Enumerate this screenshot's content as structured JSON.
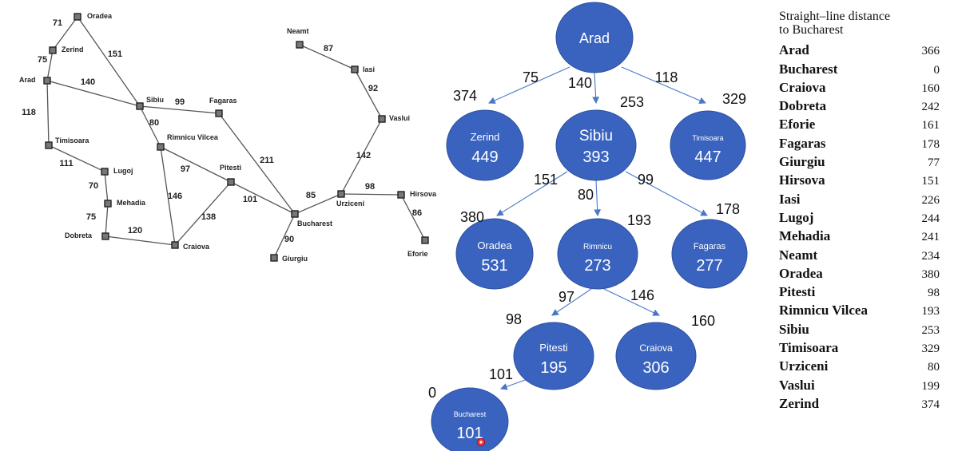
{
  "map": {
    "cities": [
      {
        "id": "oradea",
        "name": "Oradea"
      },
      {
        "id": "zerind",
        "name": "Zerind"
      },
      {
        "id": "arad",
        "name": "Arad"
      },
      {
        "id": "timisoara",
        "name": "Timisoara"
      },
      {
        "id": "lugoj",
        "name": "Lugoj"
      },
      {
        "id": "mehadia",
        "name": "Mehadia"
      },
      {
        "id": "dobreta",
        "name": "Dobreta"
      },
      {
        "id": "craiova",
        "name": "Craiova"
      },
      {
        "id": "sibiu",
        "name": "Sibiu"
      },
      {
        "id": "fagaras",
        "name": "Fagaras"
      },
      {
        "id": "rimnicu",
        "name": "Rimnicu Vilcea"
      },
      {
        "id": "pitesti",
        "name": "Pitesti"
      },
      {
        "id": "bucharest",
        "name": "Bucharest"
      },
      {
        "id": "giurgiu",
        "name": "Giurgiu"
      },
      {
        "id": "urziceni",
        "name": "Urziceni"
      },
      {
        "id": "hirsova",
        "name": "Hirsova"
      },
      {
        "id": "eforie",
        "name": "Eforie"
      },
      {
        "id": "vaslui",
        "name": "Vaslui"
      },
      {
        "id": "iasi",
        "name": "Iasi"
      },
      {
        "id": "neamt",
        "name": "Neamt"
      }
    ],
    "roads": [
      {
        "a": "oradea",
        "b": "zerind",
        "d": "71"
      },
      {
        "a": "zerind",
        "b": "arad",
        "d": "75"
      },
      {
        "a": "oradea",
        "b": "sibiu",
        "d": "151"
      },
      {
        "a": "arad",
        "b": "sibiu",
        "d": "140"
      },
      {
        "a": "arad",
        "b": "timisoara",
        "d": "118"
      },
      {
        "a": "timisoara",
        "b": "lugoj",
        "d": "111"
      },
      {
        "a": "lugoj",
        "b": "mehadia",
        "d": "70"
      },
      {
        "a": "mehadia",
        "b": "dobreta",
        "d": "75"
      },
      {
        "a": "dobreta",
        "b": "craiova",
        "d": "120"
      },
      {
        "a": "sibiu",
        "b": "fagaras",
        "d": "99"
      },
      {
        "a": "sibiu",
        "b": "rimnicu",
        "d": "80"
      },
      {
        "a": "rimnicu",
        "b": "pitesti",
        "d": "97"
      },
      {
        "a": "rimnicu",
        "b": "craiova",
        "d": "146"
      },
      {
        "a": "craiova",
        "b": "pitesti",
        "d": "138"
      },
      {
        "a": "pitesti",
        "b": "bucharest",
        "d": "101"
      },
      {
        "a": "fagaras",
        "b": "bucharest",
        "d": "211"
      },
      {
        "a": "bucharest",
        "b": "giurgiu",
        "d": "90"
      },
      {
        "a": "bucharest",
        "b": "urziceni",
        "d": "85"
      },
      {
        "a": "urziceni",
        "b": "hirsova",
        "d": "98"
      },
      {
        "a": "hirsova",
        "b": "eforie",
        "d": "86"
      },
      {
        "a": "urziceni",
        "b": "vaslui",
        "d": "142"
      },
      {
        "a": "vaslui",
        "b": "iasi",
        "d": "92"
      },
      {
        "a": "iasi",
        "b": "neamt",
        "d": "87"
      }
    ]
  },
  "tree": {
    "nodes": [
      {
        "id": "t-arad",
        "name": "Arad",
        "value": ""
      },
      {
        "id": "t-zerind",
        "name": "Zerind",
        "value": "449"
      },
      {
        "id": "t-sibiu",
        "name": "Sibiu",
        "value": "393"
      },
      {
        "id": "t-timisoara",
        "name": "Timisoara",
        "value": "447"
      },
      {
        "id": "t-oradea",
        "name": "Oradea",
        "value": "531"
      },
      {
        "id": "t-rimnicu",
        "name": "Rimnicu",
        "value": "273"
      },
      {
        "id": "t-fagaras",
        "name": "Fagaras",
        "value": "277"
      },
      {
        "id": "t-pitesti",
        "name": "Pitesti",
        "value": "195"
      },
      {
        "id": "t-craiova",
        "name": "Craiova",
        "value": "306"
      },
      {
        "id": "t-bucharest",
        "name": "Bucharest",
        "value": "101"
      }
    ],
    "edges": [
      {
        "from": "t-arad",
        "to": "t-zerind",
        "cost": "75"
      },
      {
        "from": "t-arad",
        "to": "t-sibiu",
        "cost": "140"
      },
      {
        "from": "t-arad",
        "to": "t-timisoara",
        "cost": "118"
      },
      {
        "from": "t-sibiu",
        "to": "t-oradea",
        "cost": "151"
      },
      {
        "from": "t-sibiu",
        "to": "t-rimnicu",
        "cost": "80"
      },
      {
        "from": "t-sibiu",
        "to": "t-fagaras",
        "cost": "99"
      },
      {
        "from": "t-rimnicu",
        "to": "t-pitesti",
        "cost": "97"
      },
      {
        "from": "t-rimnicu",
        "to": "t-craiova",
        "cost": "146"
      },
      {
        "from": "t-pitesti",
        "to": "t-bucharest",
        "cost": "101"
      }
    ],
    "heuristics": [
      {
        "node": "t-zerind",
        "h": "374"
      },
      {
        "node": "t-sibiu",
        "h": "253"
      },
      {
        "node": "t-timisoara",
        "h": "329"
      },
      {
        "node": "t-oradea",
        "h": "380"
      },
      {
        "node": "t-rimnicu",
        "h": "193"
      },
      {
        "node": "t-fagaras",
        "h": "178"
      },
      {
        "node": "t-pitesti",
        "h": "98"
      },
      {
        "node": "t-craiova",
        "h": "160"
      },
      {
        "node": "t-bucharest",
        "h": "0"
      }
    ]
  },
  "sld": {
    "title_line1": "Straight–line distance",
    "title_line2": "to Bucharest",
    "rows": [
      {
        "city": "Arad",
        "value": "366"
      },
      {
        "city": "Bucharest",
        "value": "0"
      },
      {
        "city": "Craiova",
        "value": "160"
      },
      {
        "city": "Dobreta",
        "value": "242"
      },
      {
        "city": "Eforie",
        "value": "161"
      },
      {
        "city": "Fagaras",
        "value": "178"
      },
      {
        "city": "Giurgiu",
        "value": "77"
      },
      {
        "city": "Hirsova",
        "value": "151"
      },
      {
        "city": "Iasi",
        "value": "226"
      },
      {
        "city": "Lugoj",
        "value": "244"
      },
      {
        "city": "Mehadia",
        "value": "241"
      },
      {
        "city": "Neamt",
        "value": "234"
      },
      {
        "city": "Oradea",
        "value": "380"
      },
      {
        "city": "Pitesti",
        "value": "98"
      },
      {
        "city": "Rimnicu Vilcea",
        "value": "193"
      },
      {
        "city": "Sibiu",
        "value": "253"
      },
      {
        "city": "Timisoara",
        "value": "329"
      },
      {
        "city": "Urziceni",
        "value": "80"
      },
      {
        "city": "Vaslui",
        "value": "199"
      },
      {
        "city": "Zerind",
        "value": "374"
      }
    ]
  },
  "colors": {
    "node_fill": "#3a63bf",
    "edge": "#4a78c8",
    "cursor": "#ff3b3b"
  }
}
